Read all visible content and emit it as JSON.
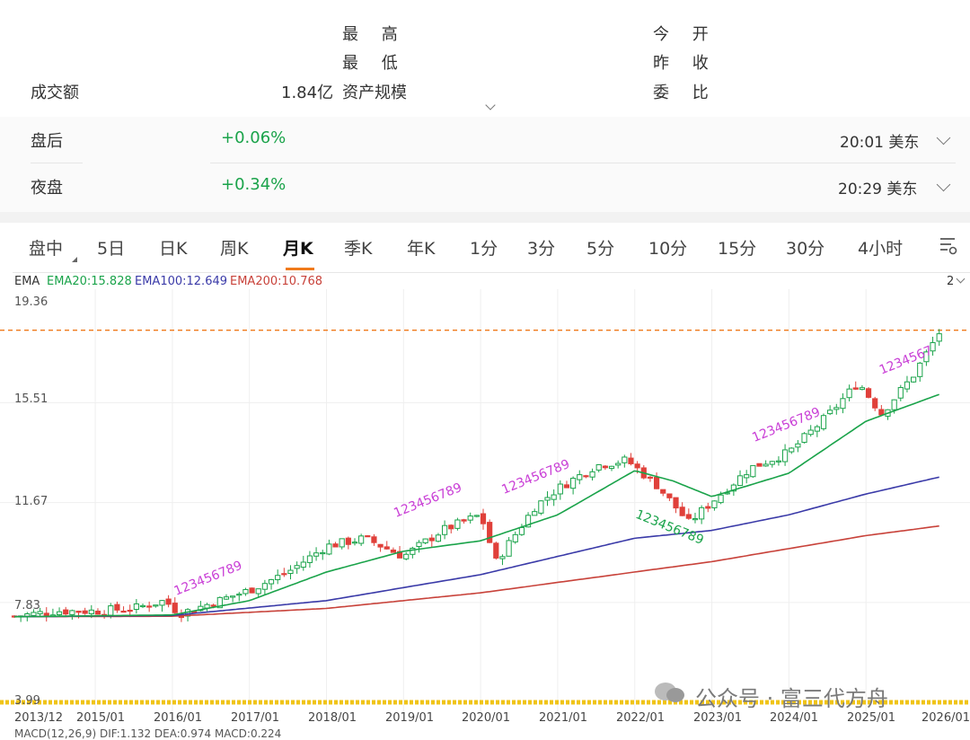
{
  "quote": {
    "high_label": "最 高",
    "low_label": "最 低",
    "aum_label": "资产规模",
    "open_label": "今 开",
    "prev_close_label": "昨 收",
    "commission_label": "委 比",
    "turnover_label": "成交额",
    "turnover_value": "1.84亿"
  },
  "sessions": [
    {
      "label": "盘后",
      "change": "+0.06%",
      "time": "20:01 美东"
    },
    {
      "label": "夜盘",
      "change": "+0.34%",
      "time": "20:29 美东"
    }
  ],
  "tabs": [
    "盘中",
    "5日",
    "日K",
    "周K",
    "月K",
    "季K",
    "年K",
    "1分",
    "3分",
    "5分",
    "10分",
    "15分",
    "30分",
    "4小时"
  ],
  "active_tab": "月K",
  "indicator": {
    "name": "EMA",
    "ema20": "EMA20:15.828",
    "ema100": "EMA100:12.649",
    "ema200": "EMA200:10.768",
    "panel_count": "2"
  },
  "colors": {
    "up": "#1aa34a",
    "down": "#e0403a",
    "ema20": "#1aa34a",
    "ema100": "#3a3aa8",
    "ema200": "#c8423a",
    "dashed_line": "#f07a1b",
    "td_count": "#c93fd6"
  },
  "watermark": "公众号 · 富三代方舟",
  "macd_label": "MACD(12,26,9) DIF:1.132 DEA:0.974 MACD:0.224",
  "chart_data": {
    "type": "candlestick",
    "y_ticks": [
      "19.36",
      "15.51",
      "11.67",
      "7.83",
      "3.99"
    ],
    "x_ticks": [
      "2013/12",
      "2015/01",
      "2016/01",
      "2017/01",
      "2018/01",
      "2019/01",
      "2020/01",
      "2021/01",
      "2022/01",
      "2023/01",
      "2024/01",
      "2025/01",
      "2026/01"
    ],
    "ylim": [
      3.99,
      19.36
    ],
    "current_price_line": 18.3,
    "close_path": [
      {
        "t": 2013.95,
        "v": 7.3
      },
      {
        "t": 2014.5,
        "v": 7.5
      },
      {
        "t": 2015.0,
        "v": 7.5
      },
      {
        "t": 2015.5,
        "v": 7.6
      },
      {
        "t": 2015.9,
        "v": 7.9
      },
      {
        "t": 2016.1,
        "v": 7.4
      },
      {
        "t": 2016.5,
        "v": 7.8
      },
      {
        "t": 2017.0,
        "v": 8.3
      },
      {
        "t": 2017.5,
        "v": 9.0
      },
      {
        "t": 2018.0,
        "v": 10.0
      },
      {
        "t": 2018.5,
        "v": 10.3
      },
      {
        "t": 2019.0,
        "v": 9.6
      },
      {
        "t": 2019.5,
        "v": 10.6
      },
      {
        "t": 2020.0,
        "v": 11.2
      },
      {
        "t": 2020.2,
        "v": 9.4
      },
      {
        "t": 2020.7,
        "v": 11.5
      },
      {
        "t": 2021.0,
        "v": 12.2
      },
      {
        "t": 2021.5,
        "v": 13.1
      },
      {
        "t": 2021.9,
        "v": 13.3
      },
      {
        "t": 2022.3,
        "v": 12.3
      },
      {
        "t": 2022.7,
        "v": 10.9
      },
      {
        "t": 2023.0,
        "v": 11.7
      },
      {
        "t": 2023.5,
        "v": 13.0
      },
      {
        "t": 2024.0,
        "v": 13.6
      },
      {
        "t": 2024.5,
        "v": 15.0
      },
      {
        "t": 2024.9,
        "v": 16.3
      },
      {
        "t": 2025.2,
        "v": 15.1
      },
      {
        "t": 2025.6,
        "v": 16.5
      },
      {
        "t": 2025.95,
        "v": 18.2
      }
    ],
    "ema20_path": [
      {
        "t": 2013.95,
        "v": 7.28
      },
      {
        "t": 2016.0,
        "v": 7.35
      },
      {
        "t": 2017.0,
        "v": 7.9
      },
      {
        "t": 2018.0,
        "v": 9.0
      },
      {
        "t": 2019.0,
        "v": 9.8
      },
      {
        "t": 2020.0,
        "v": 10.2
      },
      {
        "t": 2021.0,
        "v": 11.2
      },
      {
        "t": 2022.0,
        "v": 12.9
      },
      {
        "t": 2022.5,
        "v": 12.5
      },
      {
        "t": 2023.0,
        "v": 11.9
      },
      {
        "t": 2024.0,
        "v": 12.8
      },
      {
        "t": 2025.0,
        "v": 14.8
      },
      {
        "t": 2025.95,
        "v": 15.83
      }
    ],
    "ema100_path": [
      {
        "t": 2013.95,
        "v": 7.28
      },
      {
        "t": 2016.0,
        "v": 7.33
      },
      {
        "t": 2018.0,
        "v": 7.9
      },
      {
        "t": 2020.0,
        "v": 8.9
      },
      {
        "t": 2022.0,
        "v": 10.3
      },
      {
        "t": 2023.0,
        "v": 10.6
      },
      {
        "t": 2024.0,
        "v": 11.2
      },
      {
        "t": 2025.0,
        "v": 12.0
      },
      {
        "t": 2025.95,
        "v": 12.65
      }
    ],
    "ema200_path": [
      {
        "t": 2013.95,
        "v": 7.28
      },
      {
        "t": 2016.0,
        "v": 7.3
      },
      {
        "t": 2018.0,
        "v": 7.6
      },
      {
        "t": 2020.0,
        "v": 8.2
      },
      {
        "t": 2022.0,
        "v": 9.0
      },
      {
        "t": 2023.0,
        "v": 9.4
      },
      {
        "t": 2024.0,
        "v": 9.9
      },
      {
        "t": 2025.0,
        "v": 10.4
      },
      {
        "t": 2025.95,
        "v": 10.77
      }
    ],
    "td_labels": [
      {
        "text": "123456789",
        "t": 2016.05,
        "v": 8.1
      },
      {
        "text": "123456789",
        "t": 2018.9,
        "v": 11.1
      },
      {
        "text": "123456789",
        "t": 2020.3,
        "v": 12.0
      },
      {
        "text": "123456789",
        "t": 2023.55,
        "v": 14.0
      },
      {
        "text": "1234567",
        "t": 2025.2,
        "v": 16.6
      }
    ],
    "td_down_labels": [
      {
        "text": "123456789",
        "t": 2022.0,
        "v": 11.1
      }
    ]
  }
}
